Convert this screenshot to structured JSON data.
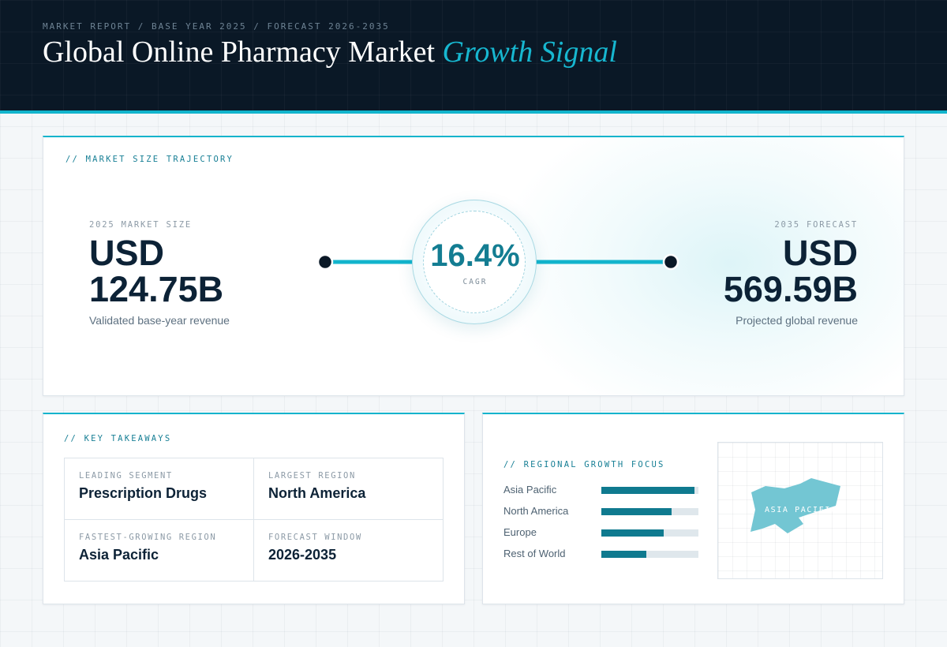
{
  "header": {
    "crumb": "MARKET REPORT / BASE YEAR 2025 / FORECAST 2026-2035",
    "title_main": "Global Online Pharmacy Market",
    "title_accent": "Growth Signal"
  },
  "trajectory": {
    "eyebrow": "// MARKET SIZE TRAJECTORY",
    "start": {
      "label": "2025 MARKET SIZE",
      "currency": "USD",
      "value": "124.75B",
      "sub": "Validated base-year revenue"
    },
    "end": {
      "label": "2035 FORECAST",
      "currency": "USD",
      "value": "569.59B",
      "sub": "Projected global revenue"
    },
    "cagr": {
      "value": "16.4%",
      "label": "CAGR"
    }
  },
  "takeaways": {
    "eyebrow": "// KEY TAKEAWAYS",
    "items": [
      {
        "label": "LEADING SEGMENT",
        "value": "Prescription Drugs"
      },
      {
        "label": "LARGEST REGION",
        "value": "North America"
      },
      {
        "label": "FASTEST-GROWING REGION",
        "value": "Asia Pacific"
      },
      {
        "label": "FORECAST WINDOW",
        "value": "2026-2035"
      }
    ]
  },
  "regional": {
    "eyebrow": "// REGIONAL GROWTH FOCUS",
    "map_label": "ASIA PACIFIC"
  },
  "colors": {
    "accent": "#12b4cc",
    "bar_fill": "#0f7a8f",
    "bar_track": "#dfe7ec",
    "header_bg": "#0a1826",
    "map_shape": "#73c6d3"
  },
  "chart_data": [
    {
      "type": "line",
      "x": [
        "2025",
        "2035"
      ],
      "series": [
        {
          "values": [
            124.75,
            569.59
          ]
        }
      ],
      "annotations": [
        "16.4%",
        "CAGR"
      ]
    },
    {
      "type": "bar",
      "orientation": "horizontal",
      "categories": [
        "Asia Pacific",
        "North America",
        "Europe",
        "Rest of World"
      ],
      "values": [
        96,
        72,
        64,
        46
      ],
      "ylim": [
        0,
        100
      ]
    }
  ]
}
